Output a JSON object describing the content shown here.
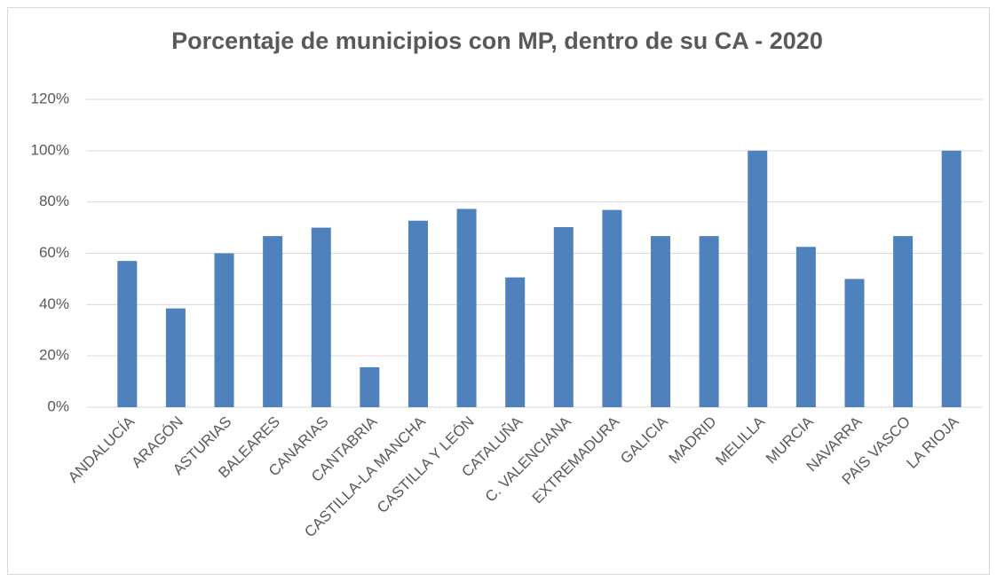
{
  "chart_data": {
    "type": "bar",
    "title": "Porcentaje de municipios con MP, dentro de su CA - 2020",
    "categories": [
      "ANDALUCÍA",
      "ARAGÓN",
      "ASTURIAS",
      "BALEARES",
      "CANARIAS",
      "CANTABRIA",
      "CASTILLA-LA MANCHA",
      "CASTILLA Y LEÓN",
      "CATALUÑA",
      "C. VALENCIANA",
      "EXTREMADURA",
      "GALICIA",
      "MADRID",
      "MELILLA",
      "MURCIA",
      "NAVARRA",
      "PAÍS VASCO",
      "LA RIOJA"
    ],
    "values": [
      57,
      38.5,
      60,
      66.7,
      70,
      15.6,
      72.7,
      77.3,
      50.6,
      70.2,
      76.9,
      66.7,
      66.7,
      100,
      62.5,
      50,
      66.7,
      100
    ],
    "color": "#4f81bd",
    "ylim": [
      0,
      120
    ],
    "yticks": [
      {
        "value": 0,
        "label": "0%"
      },
      {
        "value": 20,
        "label": "20%"
      },
      {
        "value": 40,
        "label": "40%"
      },
      {
        "value": 60,
        "label": "60%"
      },
      {
        "value": 80,
        "label": "80%"
      },
      {
        "value": 100,
        "label": "100%"
      },
      {
        "value": 120,
        "label": "120%"
      }
    ],
    "grid": true
  }
}
